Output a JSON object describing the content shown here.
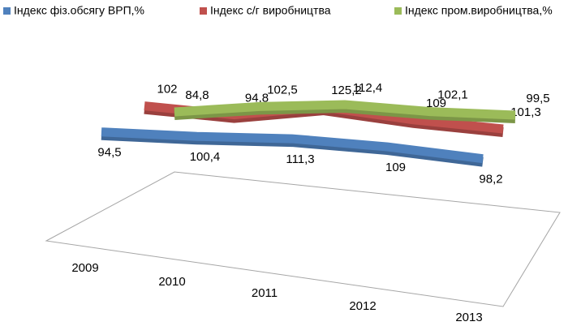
{
  "chart_data": {
    "type": "line",
    "categories": [
      "2009",
      "2010",
      "2011",
      "2012",
      "2013"
    ],
    "series": [
      {
        "name": "Індекс фіз.обсягу ВРП,%",
        "color": "#4f81bd",
        "values": [
          94.5,
          100.4,
          111.3,
          109,
          98.2
        ],
        "value_labels": [
          "94,5",
          "100,4",
          "111,3",
          "109",
          "98,2"
        ]
      },
      {
        "name": "Індекс с/г виробництва",
        "color": "#c0504d",
        "values": [
          102,
          94.8,
          125.2,
          109,
          101.3
        ],
        "value_labels": [
          "102",
          "94,8",
          "125,2",
          "109",
          "101,3"
        ]
      },
      {
        "name": "Індекс пром.виробництва,%",
        "color": "#9bbb59",
        "values": [
          84.8,
          102.5,
          112.4,
          102.1,
          99.5
        ],
        "value_labels": [
          "84,8",
          "102,5",
          "112,4",
          "102,1",
          "99,5"
        ]
      }
    ],
    "legend": "top"
  }
}
